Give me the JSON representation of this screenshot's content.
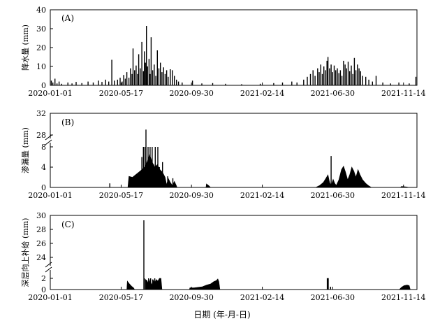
{
  "chart_data": [
    {
      "type": "bar",
      "panel": "(A)",
      "ylabel": "降水量 (mm)",
      "ylim": [
        0,
        40
      ],
      "yticks": [
        0,
        10,
        20,
        30,
        40
      ],
      "xlim": [
        "2020-01-01",
        "2021-12-10"
      ],
      "xticks": [
        "2020-01-01",
        "2020-05-17",
        "2020-09-30",
        "2021-02-14",
        "2021-06-30",
        "2021-11-14"
      ],
      "spikes": [
        [
          "2020-01-03",
          2.5
        ],
        [
          "2020-01-06",
          1.5
        ],
        [
          "2020-01-10",
          3.5
        ],
        [
          "2020-01-14",
          1.0
        ],
        [
          "2020-01-18",
          2.0
        ],
        [
          "2020-01-23",
          0.8
        ],
        [
          "2020-02-04",
          1.5
        ],
        [
          "2020-02-12",
          1.0
        ],
        [
          "2020-02-20",
          1.8
        ],
        [
          "2020-03-02",
          1.2
        ],
        [
          "2020-03-14",
          2.0
        ],
        [
          "2020-03-24",
          1.5
        ],
        [
          "2020-04-03",
          2.5
        ],
        [
          "2020-04-10",
          1.8
        ],
        [
          "2020-04-17",
          3.0
        ],
        [
          "2020-04-23",
          2.0
        ],
        [
          "2020-04-29",
          13.5
        ],
        [
          "2020-05-04",
          2.5
        ],
        [
          "2020-05-10",
          3.0
        ],
        [
          "2020-05-15",
          4.0
        ],
        [
          "2020-05-19",
          2.0
        ],
        [
          "2020-05-22",
          5.5
        ],
        [
          "2020-05-25",
          3.5
        ],
        [
          "2020-05-28",
          7.0
        ],
        [
          "2020-06-01",
          4.0
        ],
        [
          "2020-06-04",
          9.0
        ],
        [
          "2020-06-07",
          6.0
        ],
        [
          "2020-06-09",
          19.5
        ],
        [
          "2020-06-12",
          8.0
        ],
        [
          "2020-06-15",
          10.5
        ],
        [
          "2020-06-18",
          6.0
        ],
        [
          "2020-06-20",
          16.5
        ],
        [
          "2020-06-23",
          9.0
        ],
        [
          "2020-06-26",
          23.0
        ],
        [
          "2020-06-29",
          7.5
        ],
        [
          "2020-07-01",
          18.0
        ],
        [
          "2020-07-03",
          12.0
        ],
        [
          "2020-07-05",
          31.5
        ],
        [
          "2020-07-07",
          10.0
        ],
        [
          "2020-07-10",
          14.0
        ],
        [
          "2020-07-12",
          6.0
        ],
        [
          "2020-07-14",
          25.5
        ],
        [
          "2020-07-17",
          8.0
        ],
        [
          "2020-07-20",
          11.0
        ],
        [
          "2020-07-23",
          5.0
        ],
        [
          "2020-07-26",
          18.5
        ],
        [
          "2020-07-29",
          9.0
        ],
        [
          "2020-08-01",
          12.0
        ],
        [
          "2020-08-04",
          7.0
        ],
        [
          "2020-08-07",
          9.5
        ],
        [
          "2020-08-10",
          6.0
        ],
        [
          "2020-08-13",
          8.0
        ],
        [
          "2020-08-16",
          4.5
        ],
        [
          "2020-08-20",
          8.5
        ],
        [
          "2020-08-24",
          8.0
        ],
        [
          "2020-08-28",
          5.0
        ],
        [
          "2020-09-01",
          3.0
        ],
        [
          "2020-09-05",
          2.0
        ],
        [
          "2020-09-12",
          1.5
        ],
        [
          "2020-10-02",
          2.5
        ],
        [
          "2020-10-20",
          1.0
        ],
        [
          "2020-11-10",
          1.2
        ],
        [
          "2020-12-05",
          0.8
        ],
        [
          "2021-01-05",
          0.6
        ],
        [
          "2021-02-10",
          0.8
        ],
        [
          "2021-03-08",
          1.2
        ],
        [
          "2021-03-25",
          1.5
        ],
        [
          "2021-04-12",
          2.0
        ],
        [
          "2021-04-22",
          1.5
        ],
        [
          "2021-05-05",
          3.0
        ],
        [
          "2021-05-12",
          4.5
        ],
        [
          "2021-05-18",
          6.0
        ],
        [
          "2021-05-23",
          8.0
        ],
        [
          "2021-05-27",
          5.0
        ],
        [
          "2021-06-01",
          9.0
        ],
        [
          "2021-06-04",
          7.0
        ],
        [
          "2021-06-07",
          11.0
        ],
        [
          "2021-06-10",
          6.0
        ],
        [
          "2021-06-13",
          10.0
        ],
        [
          "2021-06-16",
          8.0
        ],
        [
          "2021-06-19",
          13.0
        ],
        [
          "2021-06-21",
          15.0
        ],
        [
          "2021-06-24",
          9.0
        ],
        [
          "2021-06-27",
          11.0
        ],
        [
          "2021-06-30",
          7.0
        ],
        [
          "2021-07-03",
          10.5
        ],
        [
          "2021-07-06",
          8.0
        ],
        [
          "2021-07-09",
          9.0
        ],
        [
          "2021-07-12",
          6.5
        ],
        [
          "2021-07-15",
          8.0
        ],
        [
          "2021-07-18",
          5.0
        ],
        [
          "2021-07-21",
          13.0
        ],
        [
          "2021-07-24",
          11.0
        ],
        [
          "2021-07-27",
          9.0
        ],
        [
          "2021-07-30",
          12.5
        ],
        [
          "2021-08-02",
          7.5
        ],
        [
          "2021-08-05",
          10.5
        ],
        [
          "2021-08-08",
          6.0
        ],
        [
          "2021-08-11",
          14.5
        ],
        [
          "2021-08-14",
          8.0
        ],
        [
          "2021-08-17",
          11.0
        ],
        [
          "2021-08-20",
          9.0
        ],
        [
          "2021-08-23",
          7.5
        ],
        [
          "2021-08-27",
          5.0
        ],
        [
          "2021-09-02",
          4.5
        ],
        [
          "2021-09-08",
          3.0
        ],
        [
          "2021-09-15",
          2.0
        ],
        [
          "2021-09-22",
          5.0
        ],
        [
          "2021-10-05",
          1.5
        ],
        [
          "2021-10-20",
          1.0
        ],
        [
          "2021-11-05",
          1.5
        ],
        [
          "2021-11-25",
          1.0
        ],
        [
          "2021-12-08",
          4.5
        ]
      ]
    },
    {
      "type": "area",
      "panel": "(B)",
      "ylabel": "渗漏量 (mm)",
      "axis_break": true,
      "lower_ylim": [
        0,
        8
      ],
      "upper_ylim": [
        28,
        32
      ],
      "yticks": [
        0,
        4,
        8,
        28,
        32
      ],
      "xlim": [
        "2020-01-01",
        "2021-12-10"
      ],
      "xticks": [
        "2020-01-01",
        "2020-05-17",
        "2020-09-30",
        "2021-02-14",
        "2021-06-30",
        "2021-11-14"
      ],
      "fill_segments": [
        [
          [
            "2020-05-30",
            0
          ],
          [
            "2020-06-01",
            2.2
          ],
          [
            "2020-06-08",
            2.0
          ],
          [
            "2020-06-14",
            2.5
          ],
          [
            "2020-06-20",
            3.0
          ],
          [
            "2020-06-26",
            3.5
          ],
          [
            "2020-07-01",
            4.0
          ],
          [
            "2020-07-06",
            5.0
          ],
          [
            "2020-07-11",
            6.5
          ],
          [
            "2020-07-16",
            5.0
          ],
          [
            "2020-07-21",
            4.0
          ],
          [
            "2020-07-26",
            4.5
          ],
          [
            "2020-07-31",
            3.5
          ],
          [
            "2020-08-05",
            3.0
          ],
          [
            "2020-08-10",
            2.0
          ],
          [
            "2020-08-13",
            0.5
          ],
          [
            "2020-08-16",
            1.8
          ],
          [
            "2020-08-20",
            1.0
          ],
          [
            "2020-08-24",
            0.4
          ],
          [
            "2020-08-28",
            1.2
          ],
          [
            "2020-09-01",
            0.3
          ],
          [
            "2020-09-02",
            0
          ]
        ],
        [
          [
            "2020-10-28",
            0
          ],
          [
            "2020-10-29",
            0.7
          ],
          [
            "2020-11-03",
            0.3
          ],
          [
            "2020-11-06",
            0
          ]
        ],
        [
          [
            "2021-05-28",
            0
          ],
          [
            "2021-06-05",
            0.4
          ],
          [
            "2021-06-12",
            1.0
          ],
          [
            "2021-06-17",
            1.8
          ],
          [
            "2021-06-21",
            2.5
          ],
          [
            "2021-06-24",
            1.0
          ],
          [
            "2021-06-27",
            0.4
          ],
          [
            "2021-07-01",
            1.6
          ],
          [
            "2021-07-04",
            0.8
          ],
          [
            "2021-07-07",
            0.4
          ],
          [
            "2021-07-12",
            1.5
          ],
          [
            "2021-07-17",
            3.5
          ],
          [
            "2021-07-21",
            4.2
          ],
          [
            "2021-07-25",
            3.0
          ],
          [
            "2021-07-29",
            1.5
          ],
          [
            "2021-08-02",
            2.5
          ],
          [
            "2021-08-06",
            4.0
          ],
          [
            "2021-08-10",
            3.2
          ],
          [
            "2021-08-14",
            2.0
          ],
          [
            "2021-08-18",
            3.5
          ],
          [
            "2021-08-22",
            2.5
          ],
          [
            "2021-08-27",
            1.5
          ],
          [
            "2021-09-02",
            0.8
          ],
          [
            "2021-09-08",
            0.3
          ],
          [
            "2021-09-13",
            0
          ]
        ],
        [
          [
            "2021-11-08",
            0
          ],
          [
            "2021-11-10",
            0.2
          ],
          [
            "2021-11-20",
            0.1
          ],
          [
            "2021-11-25",
            0
          ]
        ]
      ],
      "spikes": [
        [
          "2020-04-25",
          0.8
        ],
        [
          "2020-06-19",
          2.8
        ],
        [
          "2020-06-26",
          6.0
        ],
        [
          "2020-06-29",
          9.0
        ],
        [
          "2020-07-02",
          9.0
        ],
        [
          "2020-07-04",
          29.0
        ],
        [
          "2020-07-08",
          9.0
        ],
        [
          "2020-07-12",
          9.0
        ],
        [
          "2020-07-16",
          9.0
        ],
        [
          "2020-07-19",
          4.5
        ],
        [
          "2020-07-22",
          9.0
        ],
        [
          "2020-07-27",
          9.0
        ],
        [
          "2020-07-30",
          4.0
        ],
        [
          "2020-08-05",
          5.0
        ],
        [
          "2020-08-15",
          2.2
        ],
        [
          "2020-08-25",
          1.8
        ],
        [
          "2021-06-27",
          6.2
        ]
      ]
    },
    {
      "type": "area",
      "panel": "(C)",
      "ylabel": "深层向上补给 (mm)",
      "axis_break": true,
      "lower_ylim": [
        0,
        2
      ],
      "upper_ylim": [
        24,
        30
      ],
      "yticks": [
        0,
        2,
        24,
        26,
        28,
        30
      ],
      "xlim": [
        "2020-01-01",
        "2021-12-10"
      ],
      "xticks": [
        "2020-01-01",
        "2020-05-17",
        "2020-09-30",
        "2021-02-14",
        "2021-06-30",
        "2021-11-14"
      ],
      "xlabel": "日期 (年-月-日)",
      "fill_segments": [
        [
          [
            "2020-05-28",
            0
          ],
          [
            "2020-05-29",
            1.5
          ],
          [
            "2020-06-02",
            1.0
          ],
          [
            "2020-06-06",
            0.6
          ],
          [
            "2020-06-10",
            0.3
          ],
          [
            "2020-06-12",
            0
          ]
        ],
        [
          [
            "2020-07-03",
            0
          ],
          [
            "2020-07-03",
            1.8
          ],
          [
            "2020-07-06",
            1.6
          ],
          [
            "2020-07-09",
            1.0
          ],
          [
            "2020-07-12",
            1.8
          ],
          [
            "2020-07-15",
            0.8
          ],
          [
            "2020-07-18",
            1.7
          ],
          [
            "2020-07-21",
            1.2
          ],
          [
            "2020-07-24",
            1.8
          ],
          [
            "2020-07-27",
            1.5
          ],
          [
            "2020-07-30",
            2.0
          ],
          [
            "2020-08-02",
            2.2
          ],
          [
            "2020-08-04",
            0
          ]
        ],
        [
          [
            "2020-09-26",
            0
          ],
          [
            "2020-09-27",
            0.3
          ],
          [
            "2020-10-05",
            0.3
          ],
          [
            "2020-10-13",
            0.4
          ],
          [
            "2020-10-21",
            0.5
          ],
          [
            "2020-10-29",
            0.8
          ],
          [
            "2020-11-06",
            1.0
          ],
          [
            "2020-11-12",
            1.4
          ],
          [
            "2020-11-17",
            1.6
          ],
          [
            "2020-11-20",
            1.9
          ],
          [
            "2020-11-22",
            1.4
          ],
          [
            "2020-11-24",
            0
          ]
        ],
        [
          [
            "2021-06-19",
            0
          ],
          [
            "2021-06-19",
            2.7
          ],
          [
            "2021-06-22",
            2.7
          ],
          [
            "2021-06-22",
            0
          ]
        ],
        [
          [
            "2021-11-06",
            0
          ],
          [
            "2021-11-10",
            0.4
          ],
          [
            "2021-11-15",
            0.7
          ],
          [
            "2021-11-21",
            0.8
          ],
          [
            "2021-11-25",
            0.7
          ],
          [
            "2021-11-27",
            0
          ]
        ]
      ],
      "spikes": [
        [
          "2020-01-15",
          0.05
        ],
        [
          "2020-06-30",
          29.3
        ],
        [
          "2020-07-01",
          2.7
        ],
        [
          "2020-07-09",
          2.0
        ],
        [
          "2020-07-13",
          2.2
        ],
        [
          "2020-07-17",
          1.8
        ],
        [
          "2020-07-21",
          2.0
        ],
        [
          "2021-06-26",
          0.5
        ]
      ]
    }
  ]
}
